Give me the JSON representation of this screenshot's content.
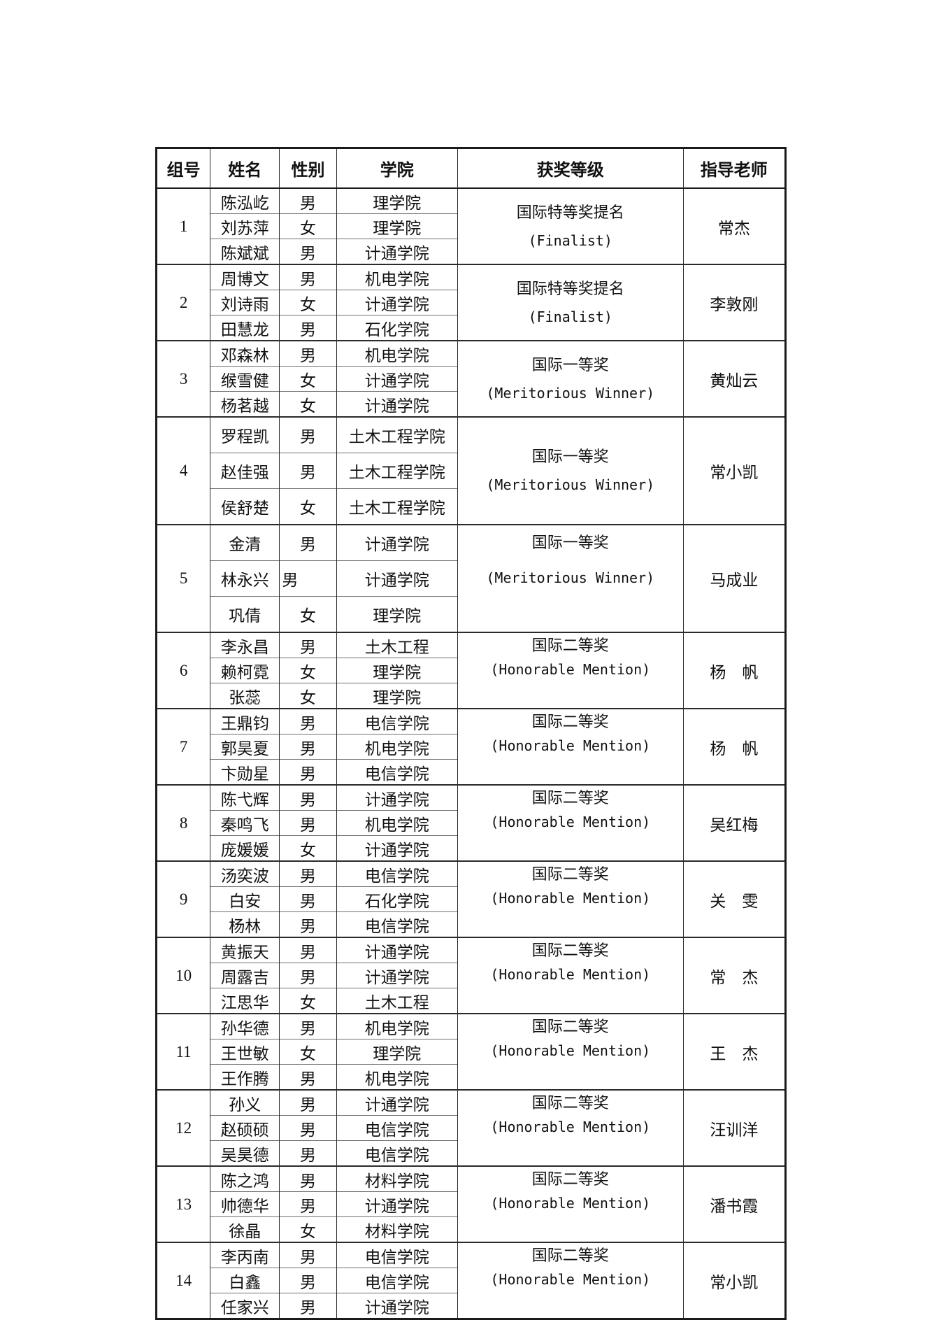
{
  "page": {
    "background_color": "#ffffff",
    "text_color": "#111111",
    "border_color": "#1a1a1a"
  },
  "table": {
    "columns": [
      {
        "key": "group",
        "label": "组号"
      },
      {
        "key": "name",
        "label": "姓名"
      },
      {
        "key": "gender",
        "label": "性别"
      },
      {
        "key": "college",
        "label": "学院"
      },
      {
        "key": "award",
        "label": "获奖等级"
      },
      {
        "key": "advisor",
        "label": "指导老师"
      }
    ],
    "groups": [
      {
        "no": "1",
        "members": [
          {
            "name": "陈泓屹",
            "gender": "男",
            "college": "理学院"
          },
          {
            "name": "刘苏萍",
            "gender": "女",
            "college": "理学院"
          },
          {
            "name": "陈斌斌",
            "gender": "男",
            "college": "计通学院"
          }
        ],
        "award_cn": "国际特等奖提名",
        "award_en": "(Finalist)",
        "advisor": "常杰",
        "award_align": "middle"
      },
      {
        "no": "2",
        "members": [
          {
            "name": "周博文",
            "gender": "男",
            "college": "机电学院"
          },
          {
            "name": "刘诗雨",
            "gender": "女",
            "college": "计通学院"
          },
          {
            "name": "田慧龙",
            "gender": "男",
            "college": "石化学院"
          }
        ],
        "award_cn": "国际特等奖提名",
        "award_en": "(Finalist)",
        "advisor": "李敦刚",
        "award_align": "middle"
      },
      {
        "no": "3",
        "members": [
          {
            "name": "邓森林",
            "gender": "男",
            "college": "机电学院"
          },
          {
            "name": "缑雪健",
            "gender": "女",
            "college": "计通学院"
          },
          {
            "name": "杨茗越",
            "gender": "女",
            "college": "计通学院"
          }
        ],
        "award_cn": "国际一等奖",
        "award_en": "(Meritorious Winner)",
        "advisor": "黄灿云",
        "award_align": "middle"
      },
      {
        "no": "4",
        "members": [
          {
            "name": "罗程凯",
            "gender": "男",
            "college": "土木工程学院"
          },
          {
            "name": "赵佳强",
            "gender": "男",
            "college": "土木工程学院"
          },
          {
            "name": "侯舒楚",
            "gender": "女",
            "college": "土木工程学院"
          }
        ],
        "award_cn": "国际一等奖",
        "award_en": "(Meritorious Winner)",
        "advisor": "常小凯",
        "award_align": "middle"
      },
      {
        "no": "5",
        "members": [
          {
            "name": "金清",
            "gender": "男",
            "college": "计通学院"
          },
          {
            "name": "林永兴",
            "gender": "男",
            "college": "计通学院",
            "gender_align": "left"
          },
          {
            "name": "巩倩",
            "gender": "女",
            "college": "理学院"
          }
        ],
        "award_cn": "国际一等奖",
        "award_en": "(Meritorious Winner)",
        "advisor": "马成业",
        "award_align": "top"
      },
      {
        "no": "6",
        "members": [
          {
            "name": "李永昌",
            "gender": "男",
            "college": "土木工程"
          },
          {
            "name": "赖柯霓",
            "gender": "女",
            "college": "理学院"
          },
          {
            "name": "张蕊",
            "gender": "女",
            "college": "理学院"
          }
        ],
        "award_cn": "国际二等奖",
        "award_en": "(Honorable Mention)",
        "advisor": "杨　帆",
        "award_align": "top"
      },
      {
        "no": "7",
        "members": [
          {
            "name": "王鼎钧",
            "gender": "男",
            "college": "电信学院"
          },
          {
            "name": "郭昊夏",
            "gender": "男",
            "college": "机电学院"
          },
          {
            "name": "卞勋星",
            "gender": "男",
            "college": "电信学院"
          }
        ],
        "award_cn": "国际二等奖",
        "award_en": "(Honorable Mention)",
        "advisor": "杨　帆",
        "award_align": "top"
      },
      {
        "no": "8",
        "members": [
          {
            "name": "陈弋辉",
            "gender": "男",
            "college": "计通学院"
          },
          {
            "name": "秦鸣飞",
            "gender": "男",
            "college": "机电学院"
          },
          {
            "name": "庞媛媛",
            "gender": "女",
            "college": "计通学院"
          }
        ],
        "award_cn": "国际二等奖",
        "award_en": "(Honorable Mention)",
        "advisor": "吴红梅",
        "award_align": "top"
      },
      {
        "no": "9",
        "members": [
          {
            "name": "汤奕波",
            "gender": "男",
            "college": "电信学院"
          },
          {
            "name": "白安",
            "gender": "男",
            "college": "石化学院"
          },
          {
            "name": "杨林",
            "gender": "男",
            "college": "电信学院"
          }
        ],
        "award_cn": "国际二等奖",
        "award_en": "(Honorable Mention)",
        "advisor": "关　雯",
        "award_align": "top"
      },
      {
        "no": "10",
        "members": [
          {
            "name": "黄振天",
            "gender": "男",
            "college": "计通学院"
          },
          {
            "name": "周露吉",
            "gender": "男",
            "college": "计通学院"
          },
          {
            "name": "江思华",
            "gender": "女",
            "college": "土木工程"
          }
        ],
        "award_cn": "国际二等奖",
        "award_en": "(Honorable Mention)",
        "advisor": "常　杰",
        "award_align": "top"
      },
      {
        "no": "11",
        "members": [
          {
            "name": "孙华德",
            "gender": "男",
            "college": "机电学院"
          },
          {
            "name": "王世敏",
            "gender": "女",
            "college": "理学院"
          },
          {
            "name": "王作腾",
            "gender": "男",
            "college": "机电学院"
          }
        ],
        "award_cn": "国际二等奖",
        "award_en": "(Honorable Mention)",
        "advisor": "王　杰",
        "award_align": "top"
      },
      {
        "no": "12",
        "members": [
          {
            "name": "孙义",
            "gender": "男",
            "college": "计通学院"
          },
          {
            "name": "赵硕硕",
            "gender": "男",
            "college": "电信学院"
          },
          {
            "name": "吴昊德",
            "gender": "男",
            "college": "电信学院"
          }
        ],
        "award_cn": "国际二等奖",
        "award_en": "(Honorable Mention)",
        "advisor": "汪训洋",
        "award_align": "top"
      },
      {
        "no": "13",
        "members": [
          {
            "name": "陈之鸿",
            "gender": "男",
            "college": "材料学院"
          },
          {
            "name": "帅德华",
            "gender": "男",
            "college": "计通学院"
          },
          {
            "name": "徐晶",
            "gender": "女",
            "college": "材料学院"
          }
        ],
        "award_cn": "国际二等奖",
        "award_en": "(Honorable Mention)",
        "advisor": "潘书霞",
        "award_align": "top"
      },
      {
        "no": "14",
        "members": [
          {
            "name": "李丙南",
            "gender": "男",
            "college": "电信学院"
          },
          {
            "name": "白鑫",
            "gender": "男",
            "college": "电信学院"
          },
          {
            "name": "任家兴",
            "gender": "男",
            "college": "计通学院"
          }
        ],
        "award_cn": "国际二等奖",
        "award_en": "(Honorable Mention)",
        "advisor": "常小凯",
        "award_align": "top"
      }
    ]
  }
}
